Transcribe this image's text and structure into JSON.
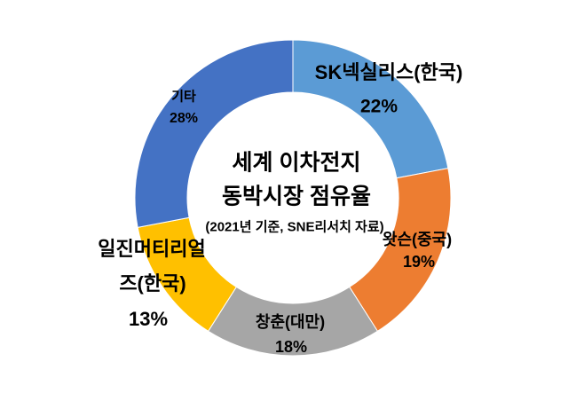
{
  "chart_data": {
    "type": "pie",
    "subtype": "donut",
    "title": "세계 이차전지 동박시장 점유율",
    "title_lines": [
      "세계 이차전지",
      "동박시장 점유율"
    ],
    "subtitle": "(2021년 기준, SNE리서치 자료)",
    "start_angle_deg": 0,
    "direction": "clockwise",
    "donut_hole_ratio": 0.67,
    "legend": "none",
    "background": "#FFFFFF",
    "text_color": "#000000",
    "slices": [
      {
        "id": "sk-nexilis",
        "label": "SK넥실리스(한국)",
        "pct": "22%",
        "value": 22,
        "color": "#5B9BD5"
      },
      {
        "id": "watson",
        "label": "왓슨(중국)",
        "pct": "19%",
        "value": 19,
        "color": "#ED7D31"
      },
      {
        "id": "changchun",
        "label": "창춘(대만)",
        "pct": "18%",
        "value": 18,
        "color": "#A6A6A6"
      },
      {
        "id": "iljin",
        "label": "일진머티리얼즈(한국)",
        "label_line1": "일진머티리얼",
        "label_line2": "즈(한국)",
        "pct": "13%",
        "value": 13,
        "color": "#FFC000"
      },
      {
        "id": "etc",
        "label": "기타",
        "pct": "28%",
        "value": 28,
        "color": "#4472C4"
      }
    ]
  }
}
